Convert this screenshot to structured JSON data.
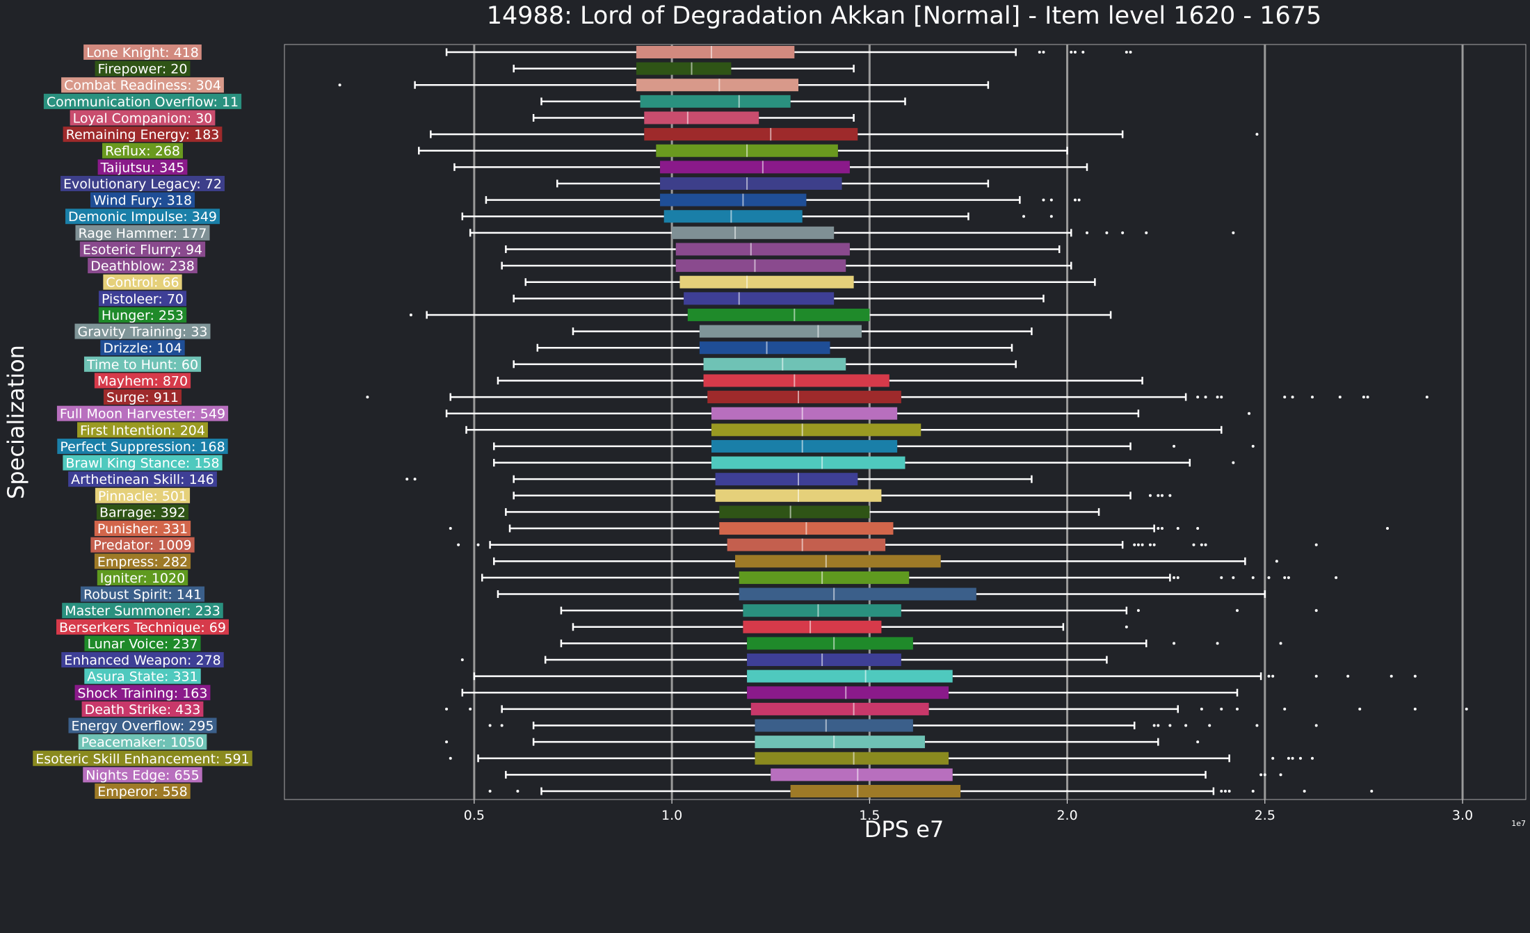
{
  "chart_data": {
    "type": "box",
    "orientation": "horizontal",
    "title": "14988: Lord of Degradation Akkan [Normal] - Item level 1620 - 1675",
    "xlabel": "DPS e7",
    "ylabel": "Specialization",
    "x_exponent_label": "1e7",
    "x_ticks": [
      0.5,
      1.0,
      1.5,
      2.0,
      2.5,
      3.0
    ],
    "x_tick_labels": [
      "0.5",
      "1.0",
      "1.5",
      "2.0",
      "2.5",
      "3.0"
    ],
    "xlim": [
      0.02,
      3.16
    ],
    "grid": true,
    "background_color": "#212328",
    "series": [
      {
        "label": "Lone Knight: 418",
        "color": "#d28a7f",
        "whisker_low": 0.43,
        "q1": 0.91,
        "median": 1.1,
        "q3": 1.31,
        "whisker_high": 1.87,
        "outliers": [
          1.93,
          1.94,
          2.01,
          2.02,
          2.04,
          2.15,
          2.16
        ]
      },
      {
        "label": "Firepower: 20",
        "color": "#2f5416",
        "whisker_low": 0.6,
        "q1": 0.91,
        "median": 1.05,
        "q3": 1.15,
        "whisker_high": 1.46,
        "outliers": []
      },
      {
        "label": "Combat Readiness: 304",
        "color": "#d8998a",
        "whisker_low": 0.35,
        "q1": 0.91,
        "median": 1.12,
        "q3": 1.32,
        "whisker_high": 1.8,
        "outliers": [
          0.16
        ]
      },
      {
        "label": "Communication Overflow: 11",
        "color": "#2a917f",
        "whisker_low": 0.67,
        "q1": 0.92,
        "median": 1.17,
        "q3": 1.3,
        "whisker_high": 1.59,
        "outliers": []
      },
      {
        "label": "Loyal Companion: 30",
        "color": "#c94d6e",
        "whisker_low": 0.65,
        "q1": 0.93,
        "median": 1.04,
        "q3": 1.22,
        "whisker_high": 1.46,
        "outliers": []
      },
      {
        "label": "Remaining Energy: 183",
        "color": "#9e2a2b",
        "whisker_low": 0.39,
        "q1": 0.93,
        "median": 1.25,
        "q3": 1.47,
        "whisker_high": 2.14,
        "outliers": [
          2.48
        ]
      },
      {
        "label": "Reflux: 268",
        "color": "#6a9a1f",
        "whisker_low": 0.36,
        "q1": 0.96,
        "median": 1.19,
        "q3": 1.42,
        "whisker_high": 2.0,
        "outliers": []
      },
      {
        "label": "Taijutsu: 345",
        "color": "#8a1a8a",
        "whisker_low": 0.45,
        "q1": 0.97,
        "median": 1.23,
        "q3": 1.45,
        "whisker_high": 2.05,
        "outliers": []
      },
      {
        "label": "Evolutionary Legacy: 72",
        "color": "#3d3f8a",
        "whisker_low": 0.71,
        "q1": 0.97,
        "median": 1.19,
        "q3": 1.43,
        "whisker_high": 1.8,
        "outliers": []
      },
      {
        "label": "Wind Fury: 318",
        "color": "#1f4e96",
        "whisker_low": 0.53,
        "q1": 0.97,
        "median": 1.18,
        "q3": 1.34,
        "whisker_high": 1.88,
        "outliers": [
          1.94,
          1.96,
          2.02,
          2.03
        ]
      },
      {
        "label": "Demonic Impulse: 349",
        "color": "#1a7fa8",
        "whisker_low": 0.47,
        "q1": 0.98,
        "median": 1.15,
        "q3": 1.33,
        "whisker_high": 1.75,
        "outliers": [
          1.89,
          1.96
        ]
      },
      {
        "label": "Rage Hammer: 177",
        "color": "#7f9095",
        "whisker_low": 0.49,
        "q1": 1.0,
        "median": 1.16,
        "q3": 1.41,
        "whisker_high": 2.01,
        "outliers": [
          2.05,
          2.1,
          2.14,
          2.2,
          2.42
        ]
      },
      {
        "label": "Esoteric Flurry: 94",
        "color": "#8a4a8e",
        "whisker_low": 0.58,
        "q1": 1.01,
        "median": 1.2,
        "q3": 1.45,
        "whisker_high": 1.98,
        "outliers": []
      },
      {
        "label": "Deathblow: 238",
        "color": "#8a4a8e",
        "whisker_low": 0.57,
        "q1": 1.01,
        "median": 1.21,
        "q3": 1.44,
        "whisker_high": 2.01,
        "outliers": []
      },
      {
        "label": "Control: 66",
        "color": "#e5d07a",
        "whisker_low": 0.63,
        "q1": 1.02,
        "median": 1.19,
        "q3": 1.46,
        "whisker_high": 2.07,
        "outliers": []
      },
      {
        "label": "Pistoleer: 70",
        "color": "#3e3f96",
        "whisker_low": 0.6,
        "q1": 1.03,
        "median": 1.17,
        "q3": 1.41,
        "whisker_high": 1.94,
        "outliers": []
      },
      {
        "label": "Hunger: 253",
        "color": "#1f8a2a",
        "whisker_low": 0.38,
        "q1": 1.04,
        "median": 1.31,
        "q3": 1.5,
        "whisker_high": 2.11,
        "outliers": [
          0.34
        ]
      },
      {
        "label": "Gravity Training: 33",
        "color": "#7f9598",
        "whisker_low": 0.75,
        "q1": 1.07,
        "median": 1.37,
        "q3": 1.48,
        "whisker_high": 1.91,
        "outliers": []
      },
      {
        "label": "Drizzle: 104",
        "color": "#1f4e96",
        "whisker_low": 0.66,
        "q1": 1.07,
        "median": 1.24,
        "q3": 1.4,
        "whisker_high": 1.86,
        "outliers": []
      },
      {
        "label": "Time to Hunt: 60",
        "color": "#6fc2b5",
        "whisker_low": 0.6,
        "q1": 1.08,
        "median": 1.28,
        "q3": 1.44,
        "whisker_high": 1.87,
        "outliers": []
      },
      {
        "label": "Mayhem: 870",
        "color": "#d63a4a",
        "whisker_low": 0.56,
        "q1": 1.08,
        "median": 1.31,
        "q3": 1.55,
        "whisker_high": 2.19,
        "outliers": []
      },
      {
        "label": "Surge: 911",
        "color": "#9e2a2b",
        "whisker_low": 0.44,
        "q1": 1.09,
        "median": 1.32,
        "q3": 1.58,
        "whisker_high": 2.3,
        "outliers": [
          0.23,
          2.33,
          2.35,
          2.38,
          2.39,
          2.55,
          2.57,
          2.62,
          2.69,
          2.75,
          2.76,
          2.91
        ]
      },
      {
        "label": "Full Moon Harvester: 549",
        "color": "#b86fbe",
        "whisker_low": 0.43,
        "q1": 1.1,
        "median": 1.33,
        "q3": 1.57,
        "whisker_high": 2.18,
        "outliers": [
          2.46
        ]
      },
      {
        "label": "First Intention: 204",
        "color": "#9a9a22",
        "whisker_low": 0.48,
        "q1": 1.1,
        "median": 1.33,
        "q3": 1.63,
        "whisker_high": 2.39,
        "outliers": []
      },
      {
        "label": "Perfect Suppression: 168",
        "color": "#1a7fa8",
        "whisker_low": 0.55,
        "q1": 1.1,
        "median": 1.33,
        "q3": 1.57,
        "whisker_high": 2.16,
        "outliers": [
          2.27,
          2.47
        ]
      },
      {
        "label": "Brawl King Stance: 158",
        "color": "#4fc9be",
        "whisker_low": 0.55,
        "q1": 1.1,
        "median": 1.38,
        "q3": 1.59,
        "whisker_high": 2.31,
        "outliers": [
          2.42
        ]
      },
      {
        "label": "Arthetinean Skill: 146",
        "color": "#3e3f96",
        "whisker_low": 0.6,
        "q1": 1.11,
        "median": 1.32,
        "q3": 1.47,
        "whisker_high": 1.91,
        "outliers": [
          0.33,
          0.35
        ]
      },
      {
        "label": "Pinnacle: 501",
        "color": "#e5d07a",
        "whisker_low": 0.6,
        "q1": 1.11,
        "median": 1.32,
        "q3": 1.53,
        "whisker_high": 2.16,
        "outliers": [
          2.21,
          2.23,
          2.24,
          2.26
        ]
      },
      {
        "label": "Barrage: 392",
        "color": "#2f5416",
        "whisker_low": 0.58,
        "q1": 1.12,
        "median": 1.3,
        "q3": 1.5,
        "whisker_high": 2.08,
        "outliers": []
      },
      {
        "label": "Punisher: 331",
        "color": "#d2664b",
        "whisker_low": 0.59,
        "q1": 1.12,
        "median": 1.34,
        "q3": 1.56,
        "whisker_high": 2.22,
        "outliers": [
          0.44,
          2.23,
          2.24,
          2.28,
          2.33,
          2.81
        ]
      },
      {
        "label": "Predator: 1009",
        "color": "#c45f4e",
        "whisker_low": 0.54,
        "q1": 1.14,
        "median": 1.33,
        "q3": 1.54,
        "whisker_high": 2.14,
        "outliers": [
          0.46,
          0.51,
          2.17,
          2.18,
          2.19,
          2.21,
          2.22,
          2.32,
          2.34,
          2.35,
          2.63
        ]
      },
      {
        "label": "Empress: 282",
        "color": "#9e7a27",
        "whisker_low": 0.55,
        "q1": 1.16,
        "median": 1.39,
        "q3": 1.68,
        "whisker_high": 2.45,
        "outliers": [
          2.53
        ]
      },
      {
        "label": "Igniter: 1020",
        "color": "#5f9a1f",
        "whisker_low": 0.52,
        "q1": 1.17,
        "median": 1.38,
        "q3": 1.6,
        "whisker_high": 2.26,
        "outliers": [
          2.27,
          2.28,
          2.39,
          2.42,
          2.47,
          2.51,
          2.55,
          2.56,
          2.68
        ]
      },
      {
        "label": "Robust Spirit: 141",
        "color": "#3b5f8a",
        "whisker_low": 0.56,
        "q1": 1.17,
        "median": 1.41,
        "q3": 1.77,
        "whisker_high": 2.5,
        "outliers": []
      },
      {
        "label": "Master Summoner: 233",
        "color": "#2a917f",
        "whisker_low": 0.72,
        "q1": 1.18,
        "median": 1.37,
        "q3": 1.58,
        "whisker_high": 2.15,
        "outliers": [
          2.18,
          2.43,
          2.63
        ]
      },
      {
        "label": "Berserkers Technique: 69",
        "color": "#d63a4a",
        "whisker_low": 0.75,
        "q1": 1.18,
        "median": 1.35,
        "q3": 1.53,
        "whisker_high": 1.99,
        "outliers": [
          2.15
        ]
      },
      {
        "label": "Lunar Voice: 237",
        "color": "#1f8a2a",
        "whisker_low": 0.72,
        "q1": 1.19,
        "median": 1.41,
        "q3": 1.61,
        "whisker_high": 2.2,
        "outliers": [
          2.27,
          2.38,
          2.54
        ]
      },
      {
        "label": "Enhanced Weapon: 278",
        "color": "#3e3f96",
        "whisker_low": 0.68,
        "q1": 1.19,
        "median": 1.38,
        "q3": 1.58,
        "whisker_high": 2.1,
        "outliers": [
          0.47
        ]
      },
      {
        "label": "Asura State: 331",
        "color": "#4fc9be",
        "whisker_low": 0.5,
        "q1": 1.19,
        "median": 1.49,
        "q3": 1.71,
        "whisker_high": 2.49,
        "outliers": [
          2.51,
          2.52,
          2.63,
          2.71,
          2.82,
          2.88
        ]
      },
      {
        "label": "Shock Training: 163",
        "color": "#8a1a8a",
        "whisker_low": 0.47,
        "q1": 1.19,
        "median": 1.44,
        "q3": 1.7,
        "whisker_high": 2.43,
        "outliers": []
      },
      {
        "label": "Death Strike: 433",
        "color": "#c8386a",
        "whisker_low": 0.57,
        "q1": 1.2,
        "median": 1.46,
        "q3": 1.65,
        "whisker_high": 2.28,
        "outliers": [
          0.43,
          0.49,
          2.34,
          2.39,
          2.43,
          2.55,
          2.74,
          2.88,
          3.01
        ]
      },
      {
        "label": "Energy Overflow: 295",
        "color": "#3b5f8a",
        "whisker_low": 0.65,
        "q1": 1.21,
        "median": 1.39,
        "q3": 1.61,
        "whisker_high": 2.17,
        "outliers": [
          0.54,
          0.57,
          2.22,
          2.23,
          2.26,
          2.3,
          2.36,
          2.48,
          2.63
        ]
      },
      {
        "label": "Peacemaker: 1050",
        "color": "#6fc2b5",
        "whisker_low": 0.65,
        "q1": 1.21,
        "median": 1.41,
        "q3": 1.64,
        "whisker_high": 2.23,
        "outliers": [
          0.43,
          2.33
        ]
      },
      {
        "label": "Esoteric Skill Enhancement: 591",
        "color": "#8a8a1f",
        "whisker_low": 0.51,
        "q1": 1.21,
        "median": 1.46,
        "q3": 1.7,
        "whisker_high": 2.41,
        "outliers": [
          0.44,
          2.52,
          2.56,
          2.57,
          2.59,
          2.62
        ]
      },
      {
        "label": "Nights Edge: 655",
        "color": "#b86fbe",
        "whisker_low": 0.58,
        "q1": 1.25,
        "median": 1.47,
        "q3": 1.71,
        "whisker_high": 2.35,
        "outliers": [
          2.49,
          2.5,
          2.54
        ]
      },
      {
        "label": "Emperor: 558",
        "color": "#9e7a27",
        "whisker_low": 0.67,
        "q1": 1.3,
        "median": 1.47,
        "q3": 1.73,
        "whisker_high": 2.37,
        "outliers": [
          0.54,
          0.61,
          2.39,
          2.4,
          2.41,
          2.47,
          2.6,
          2.77
        ]
      }
    ]
  }
}
